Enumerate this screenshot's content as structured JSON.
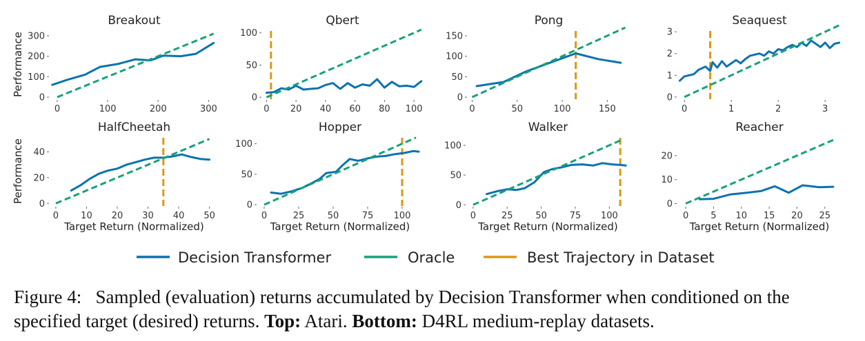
{
  "colors": {
    "dt": "#0a72b0",
    "oracle": "#16a27a",
    "best": "#dd9712",
    "axis": "#666666"
  },
  "legend": {
    "items": [
      {
        "label": "Decision Transformer",
        "color": "#0a72b0",
        "dashed": false
      },
      {
        "label": "Oracle",
        "color": "#16a27a",
        "dashed": false
      },
      {
        "label": "Best Trajectory in Dataset",
        "color": "#dd9712",
        "dashed": false
      }
    ]
  },
  "caption": {
    "prefix": "Figure 4:",
    "text1": "Sampled (evaluation) returns accumulated by Decision Transformer when conditioned on the specified target (desired) returns.",
    "top_label": "Top:",
    "top_text": "Atari.",
    "bottom_label": "Bottom:",
    "bottom_text": "D4RL medium-replay datasets."
  },
  "chart_data": [
    {
      "type": "line",
      "title": "Breakout",
      "ylabel": "Performance",
      "xlabel": "",
      "xlim": [
        -15,
        320
      ],
      "ylim": [
        -10,
        330
      ],
      "xticks": [
        0,
        100,
        200,
        300
      ],
      "yticks": [
        0,
        100,
        200,
        300
      ],
      "series": [
        {
          "name": "Decision Transformer",
          "x": [
            -10,
            20,
            55,
            85,
            120,
            155,
            185,
            210,
            245,
            275,
            310
          ],
          "y": [
            60,
            85,
            110,
            148,
            162,
            185,
            180,
            203,
            200,
            212,
            265
          ]
        },
        {
          "name": "Oracle",
          "x": [
            0,
            310
          ],
          "y": [
            0,
            310
          ]
        }
      ],
      "best": null
    },
    {
      "type": "line",
      "title": "Qbert",
      "ylabel": "",
      "xlabel": "",
      "xlim": [
        -3,
        106
      ],
      "ylim": [
        -3,
        105
      ],
      "xticks": [
        0,
        20,
        40,
        60,
        80,
        100
      ],
      "yticks": [
        0,
        50,
        100
      ],
      "series": [
        {
          "name": "Decision Transformer",
          "x": [
            0,
            5,
            10,
            15,
            20,
            25,
            30,
            35,
            40,
            45,
            50,
            55,
            60,
            65,
            70,
            75,
            80,
            85,
            90,
            95,
            100,
            105
          ],
          "y": [
            7,
            8,
            14,
            12,
            18,
            12,
            13,
            14,
            19,
            22,
            13,
            22,
            15,
            20,
            18,
            28,
            15,
            24,
            17,
            18,
            16,
            25
          ]
        },
        {
          "name": "Oracle",
          "x": [
            0,
            105
          ],
          "y": [
            0,
            105
          ]
        }
      ],
      "best": 3
    },
    {
      "type": "line",
      "title": "Pong",
      "ylabel": "",
      "xlabel": "",
      "xlim": [
        -5,
        175
      ],
      "ylim": [
        -5,
        165
      ],
      "xticks": [
        0,
        50,
        100,
        150
      ],
      "yticks": [
        0,
        50,
        100,
        150
      ],
      "series": [
        {
          "name": "Decision Transformer",
          "x": [
            5,
            35,
            60,
            85,
            115,
            140,
            165
          ],
          "y": [
            27,
            37,
            63,
            83,
            107,
            93,
            84
          ]
        },
        {
          "name": "Oracle",
          "x": [
            0,
            170
          ],
          "y": [
            0,
            170
          ]
        }
      ],
      "best": 115
    },
    {
      "type": "line",
      "title": "Seaquest",
      "ylabel": "",
      "xlabel": "",
      "xlim": [
        -0.15,
        3.35
      ],
      "ylim": [
        -0.1,
        3.1
      ],
      "xticks": [
        0,
        1,
        2,
        3
      ],
      "yticks": [
        0,
        1,
        2,
        3
      ],
      "series": [
        {
          "name": "Decision Transformer",
          "x": [
            -0.1,
            0.0,
            0.1,
            0.2,
            0.3,
            0.45,
            0.55,
            0.6,
            0.7,
            0.8,
            0.9,
            1.0,
            1.1,
            1.2,
            1.3,
            1.4,
            1.5,
            1.6,
            1.7,
            1.8,
            1.9,
            2.0,
            2.1,
            2.2,
            2.3,
            2.4,
            2.5,
            2.6,
            2.7,
            2.8,
            2.9,
            3.0,
            3.1,
            3.2,
            3.3
          ],
          "y": [
            0.75,
            0.95,
            1.0,
            1.05,
            1.25,
            1.4,
            1.2,
            1.6,
            1.35,
            1.65,
            1.4,
            1.55,
            1.7,
            1.55,
            1.75,
            1.9,
            1.95,
            2.0,
            1.9,
            2.1,
            2.0,
            2.2,
            2.15,
            2.3,
            2.4,
            2.3,
            2.5,
            2.35,
            2.6,
            2.45,
            2.3,
            2.5,
            2.25,
            2.45,
            2.5
          ]
        },
        {
          "name": "Oracle",
          "x": [
            0,
            3.3
          ],
          "y": [
            0,
            3.3
          ]
        }
      ],
      "best": 0.55
    },
    {
      "type": "line",
      "title": "HalfCheetah",
      "ylabel": "Performance",
      "xlabel": "Target Return (Normalized)",
      "xlim": [
        -2,
        53
      ],
      "ylim": [
        -2,
        52
      ],
      "xticks": [
        0,
        10,
        20,
        30,
        40,
        50
      ],
      "yticks": [
        0,
        20,
        40
      ],
      "series": [
        {
          "name": "Decision Transformer",
          "x": [
            5,
            8,
            11,
            14,
            17,
            20,
            23,
            26,
            29,
            32,
            35,
            38,
            41,
            44,
            47,
            50
          ],
          "y": [
            10,
            14,
            19,
            23,
            25.5,
            27,
            30,
            32,
            34,
            35.5,
            35.5,
            36.5,
            38,
            36,
            34.5,
            34
          ]
        },
        {
          "name": "Oracle",
          "x": [
            0,
            50
          ],
          "y": [
            0,
            50
          ]
        }
      ],
      "best": 35
    },
    {
      "type": "line",
      "title": "Hopper",
      "ylabel": "",
      "xlabel": "Target Return (Normalized)",
      "xlim": [
        -5,
        115
      ],
      "ylim": [
        -2,
        112
      ],
      "xticks": [
        0,
        25,
        50,
        75,
        100
      ],
      "yticks": [
        0,
        50,
        100
      ],
      "series": [
        {
          "name": "Decision Transformer",
          "x": [
            5,
            12,
            20,
            28,
            35,
            40,
            45,
            52,
            57,
            62,
            68,
            75,
            82,
            88,
            95,
            102,
            108,
            112
          ],
          "y": [
            20,
            18,
            22,
            28,
            36,
            42,
            52,
            54,
            65,
            75,
            72,
            76,
            79,
            80,
            83,
            85,
            88,
            87
          ]
        },
        {
          "name": "Oracle",
          "x": [
            0,
            110
          ],
          "y": [
            0,
            110
          ]
        }
      ],
      "best": 100
    },
    {
      "type": "line",
      "title": "Walker",
      "ylabel": "",
      "xlabel": "Target Return (Normalized)",
      "xlim": [
        -5,
        115
      ],
      "ylim": [
        -2,
        115
      ],
      "xticks": [
        0,
        25,
        50,
        75,
        100
      ],
      "yticks": [
        0,
        50,
        100
      ],
      "series": [
        {
          "name": "Decision Transformer",
          "x": [
            10,
            18,
            25,
            32,
            38,
            45,
            52,
            58,
            65,
            72,
            80,
            88,
            95,
            102,
            108,
            112
          ],
          "y": [
            18,
            23,
            26,
            25,
            28,
            38,
            55,
            60,
            63,
            67,
            68,
            66,
            70,
            68,
            67,
            66
          ]
        },
        {
          "name": "Oracle",
          "x": [
            0,
            110
          ],
          "y": [
            0,
            110
          ]
        }
      ],
      "best": 108
    },
    {
      "type": "line",
      "title": "Reacher",
      "ylabel": "",
      "xlabel": "Target Return (Normalized)",
      "xlim": [
        -1.5,
        28
      ],
      "ylim": [
        -1,
        28
      ],
      "xticks": [
        0,
        5,
        10,
        15,
        20,
        25
      ],
      "yticks": [
        0,
        10,
        20
      ],
      "series": [
        {
          "name": "Decision Transformer",
          "x": [
            2.5,
            5,
            8,
            11,
            13.5,
            16,
            18.5,
            21,
            24,
            26.5
          ],
          "y": [
            1.8,
            2.0,
            3.8,
            4.5,
            5.2,
            7.2,
            4.5,
            7.6,
            6.8,
            7.0
          ]
        },
        {
          "name": "Oracle",
          "x": [
            0,
            26.5
          ],
          "y": [
            0,
            26.5
          ]
        }
      ],
      "best": null
    }
  ]
}
